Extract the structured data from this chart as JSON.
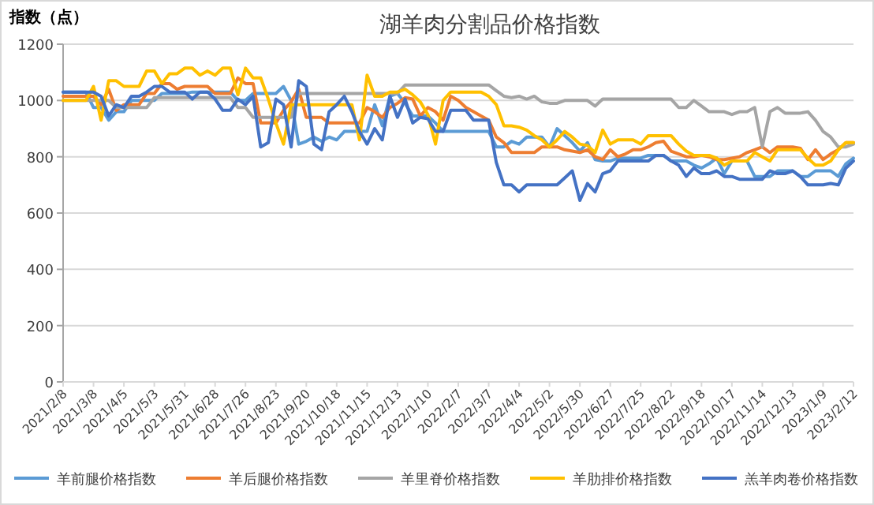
{
  "chart_data": {
    "type": "line",
    "title": "湖羊肉分割品价格指数",
    "ylabel": "指数（点）",
    "categories": [
      "2021/2/8",
      null,
      null,
      null,
      "2021/3/8",
      null,
      null,
      null,
      "2021/4/5",
      null,
      null,
      null,
      "2021/5/3",
      null,
      null,
      null,
      "2021/5/31",
      null,
      null,
      null,
      "2021/6/28",
      null,
      null,
      null,
      "2021/7/26",
      null,
      null,
      null,
      "2021/8/23",
      null,
      null,
      null,
      "2021/9/20",
      null,
      null,
      null,
      "2021/10/18",
      null,
      null,
      null,
      "2021/11/15",
      null,
      null,
      null,
      "2021/12/13",
      null,
      null,
      null,
      "2022/1/10",
      null,
      null,
      null,
      "2022/2/7",
      null,
      null,
      null,
      "2022/3/7",
      null,
      null,
      null,
      "2022/4/4",
      null,
      null,
      null,
      "2022/5/2",
      null,
      null,
      null,
      "2022/5/30",
      null,
      null,
      null,
      "2022/6/27",
      null,
      null,
      null,
      "2022/7/25",
      null,
      null,
      null,
      "2022/8/22",
      null,
      null,
      null,
      "2022/9/18",
      null,
      null,
      null,
      "2022/10/17",
      null,
      null,
      null,
      "2022/11/14",
      null,
      null,
      null,
      "2022/12/13",
      null,
      null,
      null,
      "2023/1/9",
      null,
      null,
      null,
      "2023/2/12"
    ],
    "ylim": [
      0,
      1200
    ],
    "yticks": [
      0,
      200,
      400,
      600,
      800,
      1000,
      1200
    ],
    "grid": "y",
    "legend": "bottom",
    "series": [
      {
        "name": "羊前腿价格指数",
        "color": "#5b9bd5",
        "values": [
          1030,
          1030,
          1030,
          1030,
          975,
          975,
          930,
          960,
          960,
          1000,
          1000,
          1000,
          1000,
          1025,
          1025,
          1025,
          1025,
          1030,
          1030,
          1030,
          1030,
          1030,
          1030,
          1000,
          1000,
          1025,
          1025,
          1025,
          1025,
          1050,
          1000,
          845,
          855,
          870,
          855,
          870,
          860,
          890,
          890,
          890,
          890,
          985,
          910,
          1015,
          1025,
          990,
          945,
          945,
          945,
          920,
          890,
          890,
          890,
          890,
          890,
          890,
          890,
          835,
          835,
          855,
          845,
          870,
          870,
          870,
          835,
          900,
          875,
          850,
          820,
          850,
          790,
          785,
          785,
          795,
          795,
          795,
          795,
          805,
          805,
          805,
          785,
          785,
          785,
          770,
          760,
          775,
          795,
          740,
          785,
          785,
          785,
          730,
          730,
          730,
          750,
          750,
          750,
          730,
          730,
          750,
          750,
          750,
          730,
          775,
          795
        ]
      },
      {
        "name": "羊后腿价格指数",
        "color": "#ed7d31",
        "values": [
          1015,
          1015,
          1015,
          1015,
          1015,
          985,
          1040,
          965,
          985,
          985,
          985,
          1025,
          1025,
          1060,
          1060,
          1040,
          1050,
          1050,
          1050,
          1050,
          1025,
          1025,
          1025,
          1080,
          1060,
          1060,
          920,
          920,
          920,
          965,
          995,
          1040,
          940,
          940,
          940,
          920,
          920,
          920,
          920,
          920,
          975,
          960,
          940,
          975,
          990,
          1010,
          1005,
          945,
          975,
          960,
          930,
          1015,
          1000,
          975,
          960,
          945,
          930,
          870,
          850,
          815,
          815,
          815,
          815,
          835,
          835,
          835,
          825,
          820,
          815,
          825,
          800,
          790,
          825,
          800,
          810,
          825,
          825,
          835,
          850,
          855,
          820,
          810,
          800,
          800,
          805,
          800,
          790,
          790,
          795,
          800,
          815,
          825,
          835,
          815,
          835,
          835,
          835,
          830,
          790,
          825,
          790,
          810,
          825,
          850,
          850
        ]
      },
      {
        "name": "羊里脊价格指数",
        "color": "#a5a5a5",
        "values": [
          1000,
          1000,
          1000,
          1000,
          1000,
          1000,
          1000,
          975,
          975,
          975,
          975,
          975,
          1010,
          1010,
          1010,
          1010,
          1010,
          1010,
          1010,
          1010,
          1010,
          1010,
          1010,
          975,
          975,
          940,
          940,
          940,
          940,
          940,
          940,
          1025,
          1025,
          1025,
          1025,
          1025,
          1025,
          1025,
          1025,
          1025,
          1025,
          1025,
          1025,
          1025,
          1025,
          1055,
          1055,
          1055,
          1055,
          1055,
          1055,
          1055,
          1055,
          1055,
          1055,
          1055,
          1055,
          1035,
          1015,
          1010,
          1015,
          1005,
          1015,
          995,
          990,
          990,
          1000,
          1000,
          1000,
          1000,
          980,
          1005,
          1005,
          1005,
          1005,
          1005,
          1005,
          1005,
          1005,
          1005,
          1005,
          975,
          975,
          1000,
          980,
          960,
          960,
          960,
          950,
          960,
          960,
          975,
          835,
          960,
          975,
          955,
          955,
          955,
          960,
          930,
          890,
          870,
          835,
          835,
          845
        ]
      },
      {
        "name": "羊肋排价格指数",
        "color": "#ffc000",
        "values": [
          1000,
          1000,
          1000,
          1000,
          1050,
          930,
          1070,
          1070,
          1050,
          1050,
          1050,
          1105,
          1105,
          1060,
          1095,
          1095,
          1115,
          1115,
          1090,
          1105,
          1090,
          1115,
          1115,
          1020,
          1115,
          1080,
          1080,
          1005,
          920,
          845,
          985,
          985,
          985,
          985,
          985,
          985,
          985,
          985,
          985,
          860,
          1090,
          1015,
          1015,
          1030,
          1030,
          1040,
          1020,
          995,
          950,
          845,
          1000,
          1030,
          1030,
          1030,
          1030,
          1030,
          1015,
          985,
          910,
          910,
          905,
          895,
          875,
          860,
          835,
          860,
          890,
          870,
          845,
          840,
          815,
          895,
          845,
          860,
          860,
          860,
          845,
          875,
          875,
          875,
          875,
          845,
          820,
          805,
          805,
          805,
          795,
          770,
          785,
          785,
          785,
          815,
          800,
          785,
          825,
          825,
          825,
          825,
          795,
          770,
          770,
          785,
          825,
          850,
          850
        ]
      },
      {
        "name": "羔羊肉卷价格指数",
        "color": "#4472c4",
        "values": [
          1030,
          1030,
          1030,
          1030,
          1030,
          1015,
          945,
          985,
          975,
          1015,
          1015,
          1030,
          1050,
          1050,
          1030,
          1030,
          1030,
          1005,
          1030,
          1030,
          1005,
          965,
          965,
          1005,
          985,
          1015,
          835,
          850,
          1005,
          985,
          835,
          1070,
          1050,
          845,
          825,
          960,
          985,
          1015,
          960,
          890,
          845,
          900,
          860,
          1015,
          940,
          1005,
          920,
          940,
          935,
          890,
          890,
          965,
          965,
          965,
          930,
          930,
          930,
          780,
          700,
          700,
          675,
          700,
          700,
          700,
          700,
          700,
          725,
          750,
          645,
          705,
          675,
          740,
          750,
          785,
          785,
          785,
          785,
          785,
          805,
          805,
          785,
          770,
          730,
          760,
          740,
          740,
          750,
          730,
          730,
          720,
          720,
          720,
          720,
          750,
          740,
          740,
          750,
          730,
          700,
          700,
          700,
          705,
          700,
          760,
          785
        ]
      }
    ]
  }
}
